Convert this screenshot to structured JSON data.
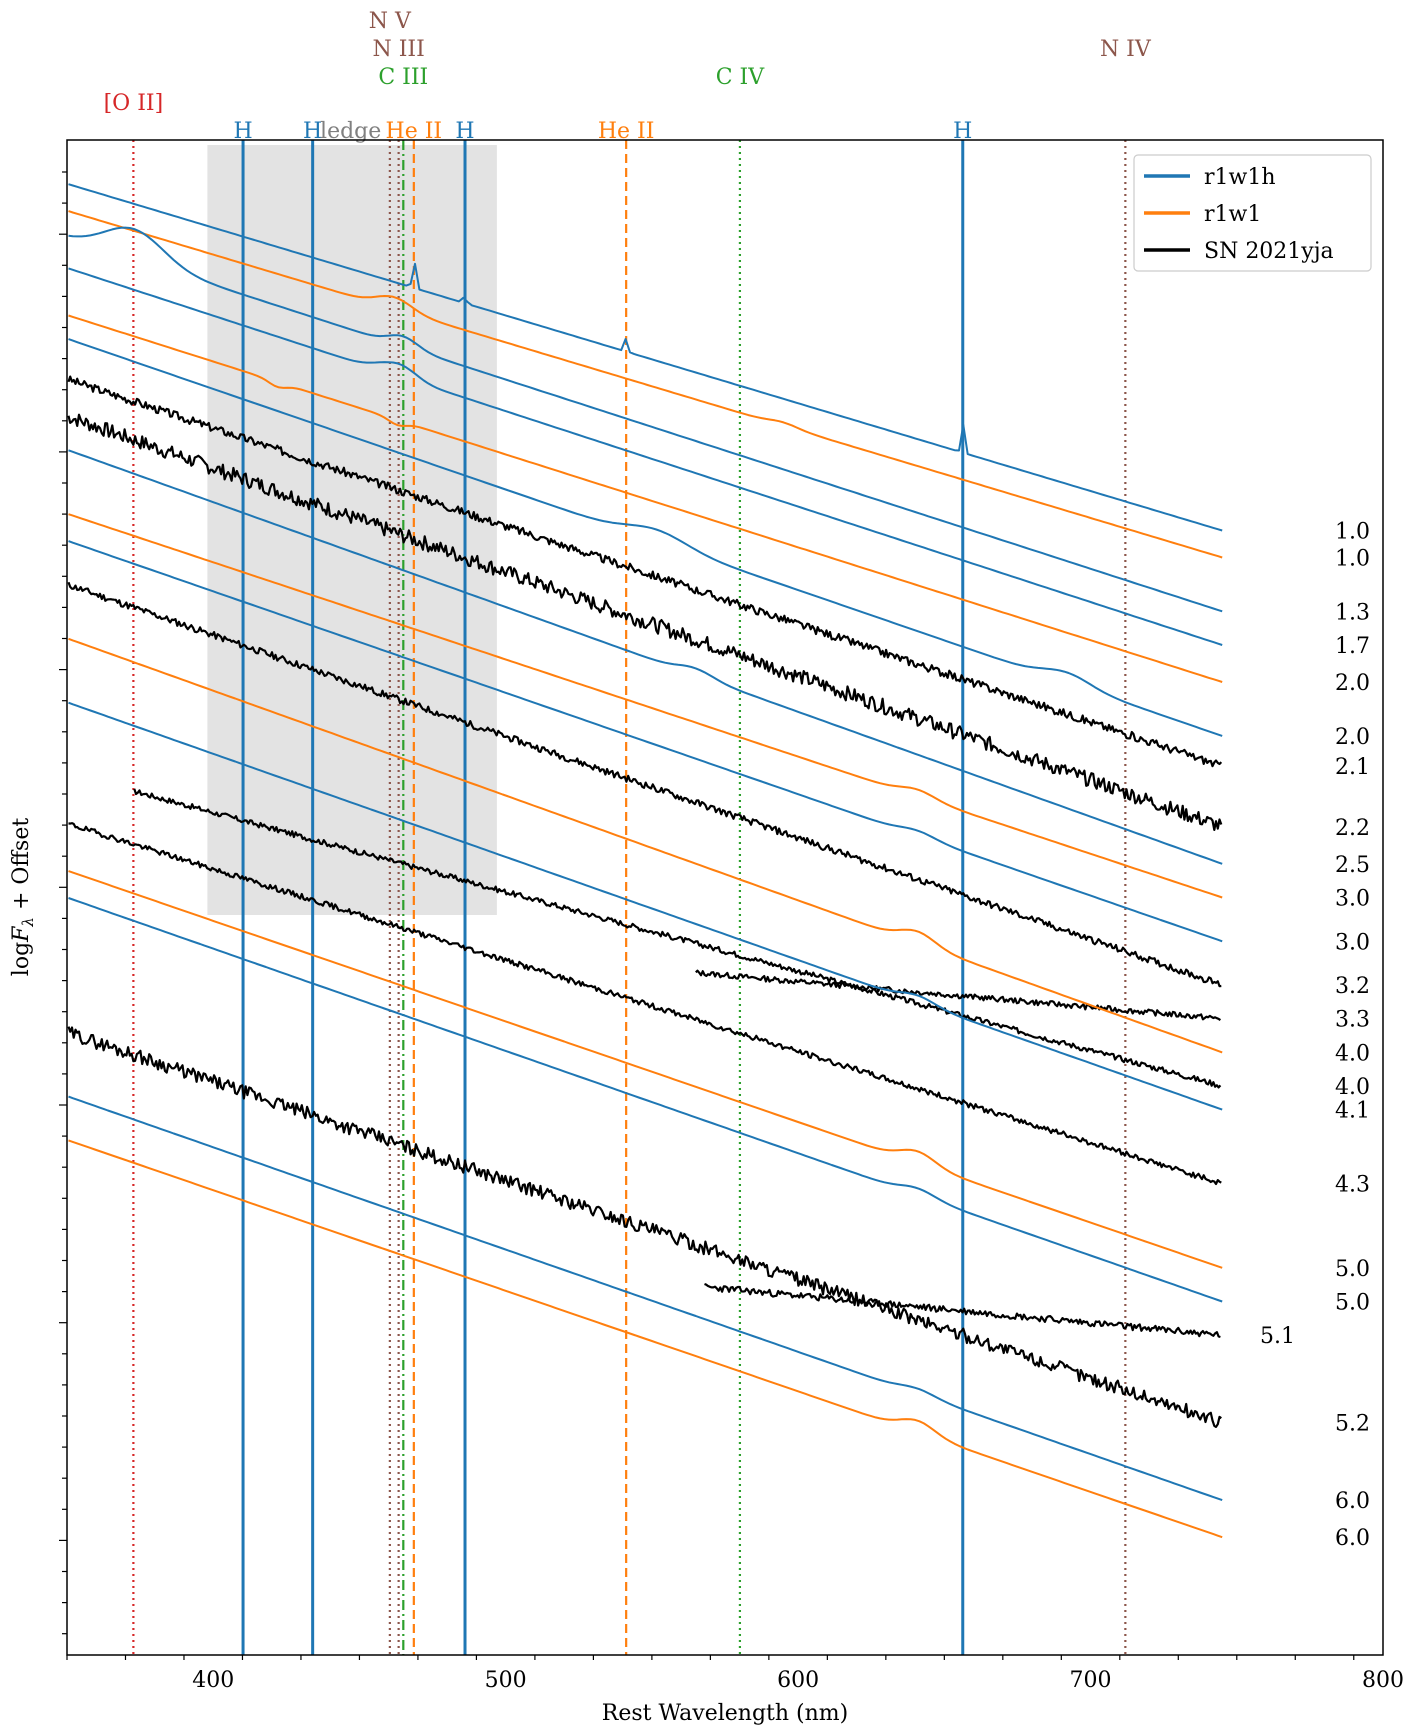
{
  "chart_data": {
    "type": "line",
    "xlabel": "Rest Wavelength (nm)",
    "ylabel": "log$F_\\lambda$ + Offset",
    "xlim": [
      350,
      800
    ],
    "xticks": [
      400,
      500,
      600,
      700,
      800
    ],
    "grid": false,
    "legend_placement": "top-right",
    "legend": [
      {
        "label": "r1w1h",
        "color": "#1f77b4"
      },
      {
        "label": "r1w1",
        "color": "#ff7f0e"
      },
      {
        "label": "SN 2021yja",
        "color": "#000000"
      }
    ],
    "ledge_band": {
      "label": "ledge",
      "x": [
        398,
        497
      ]
    },
    "line_markers": [
      {
        "label": "[O II]",
        "x": 372.7,
        "color": "#d62728",
        "style": "dotted",
        "tier": 0
      },
      {
        "label": "H",
        "x": 410.2,
        "color": "#1f77b4",
        "style": "solid",
        "tier": 1
      },
      {
        "label": "H",
        "x": 434.0,
        "color": "#1f77b4",
        "style": "solid",
        "tier": 1
      },
      {
        "label": "H",
        "x": 486.1,
        "color": "#1f77b4",
        "style": "solid",
        "tier": 1
      },
      {
        "label": "H",
        "x": 656.3,
        "color": "#1f77b4",
        "style": "solid",
        "tier": 1
      },
      {
        "label": "N V",
        "x": 460.4,
        "color": "#8c564b",
        "style": "dotted",
        "tier": 4
      },
      {
        "label": "N III",
        "x": 463.4,
        "color": "#8c564b",
        "style": "dotted",
        "tier": 3
      },
      {
        "label": "C III",
        "x": 465.0,
        "color": "#2ca02c",
        "style": "dashdot",
        "tier": 2
      },
      {
        "label": "He II",
        "x": 468.6,
        "color": "#ff7f0e",
        "style": "dashed",
        "tier": 1
      },
      {
        "label": "He II",
        "x": 541.2,
        "color": "#ff7f0e",
        "style": "dashed",
        "tier": 1
      },
      {
        "label": "C IV",
        "x": 580.1,
        "color": "#2ca02c",
        "style": "dotted",
        "tier": 2
      },
      {
        "label": "N IV",
        "x": 711.9,
        "color": "#8c564b",
        "style": "dotted",
        "tier": 3
      }
    ],
    "series": [
      {
        "model": "r1w1h",
        "color": "#1f77b4",
        "phase_label": "1.0",
        "y0": 12.2,
        "y1": 1.9,
        "features": [
          {
            "x": 468.6,
            "h": 1.0,
            "w": 0.5
          },
          {
            "x": 486.1,
            "h": 0.3,
            "w": 0.5
          },
          {
            "x": 541.2,
            "h": 0.4,
            "w": 0.5
          },
          {
            "x": 656.3,
            "h": 0.9,
            "w": 0.5
          }
        ]
      },
      {
        "model": "r1w1",
        "color": "#ff7f0e",
        "phase_label": "1.0",
        "y0": 11.4,
        "y1": 1.1,
        "features": [
          {
            "x": 462,
            "h": 0.35,
            "w": 6
          },
          {
            "x": 595,
            "h": 0.1,
            "w": 5
          }
        ]
      },
      {
        "model": "r1w1h",
        "color": "#1f77b4",
        "phase_label": "1.3",
        "y0": 10.6,
        "y1": -0.5,
        "features": [
          {
            "x": 373,
            "h": 0.9,
            "w": 10
          },
          {
            "x": 465,
            "h": 0.3,
            "w": 5
          }
        ]
      },
      {
        "model": "r1w1h",
        "color": "#1f77b4",
        "phase_label": "1.7",
        "y0": 9.7,
        "y1": -1.5,
        "features": [
          {
            "x": 465,
            "h": 0.3,
            "w": 5
          },
          {
            "x": 458,
            "h": 0.15,
            "w": 5
          }
        ]
      },
      {
        "model": "r1w1",
        "color": "#ff7f0e",
        "phase_label": "2.0",
        "y0": 8.3,
        "y1": -2.6,
        "features": [
          {
            "x": 422,
            "h": -0.15,
            "w": 3
          },
          {
            "x": 463,
            "h": -0.15,
            "w": 3
          }
        ]
      },
      {
        "model": "r1w1h",
        "color": "#1f77b4",
        "phase_label": "2.0",
        "y0": 7.6,
        "y1": -4.2,
        "features": [
          {
            "x": 552,
            "h": 0.35,
            "w": 10
          },
          {
            "x": 692,
            "h": 0.3,
            "w": 8
          }
        ]
      },
      {
        "model": "SN 2021yja",
        "color": "#000000",
        "phase_label": "2.1",
        "y0": 6.4,
        "y1": -5.1,
        "noise": 0.12,
        "seed": 3
      },
      {
        "model": "SN 2021yja",
        "color": "#000000",
        "phase_label": "2.2",
        "y0": 5.3,
        "y1": -6.9,
        "noise": 0.22,
        "seed": 7
      },
      {
        "model": "r1w1h",
        "color": "#1f77b4",
        "phase_label": "2.5",
        "y0": 4.3,
        "y1": -8.0,
        "features": [
          {
            "x": 565,
            "h": 0.2,
            "w": 6
          }
        ]
      },
      {
        "model": "r1w1",
        "color": "#ff7f0e",
        "phase_label": "3.0",
        "y0": 2.4,
        "y1": -9.0,
        "features": [
          {
            "x": 641,
            "h": 0.2,
            "w": 6
          }
        ]
      },
      {
        "model": "r1w1h",
        "color": "#1f77b4",
        "phase_label": "3.0",
        "y0": 1.6,
        "y1": -10.3,
        "features": [
          {
            "x": 641,
            "h": 0.15,
            "w": 6
          }
        ]
      },
      {
        "model": "SN 2021yja",
        "color": "#000000",
        "phase_label": "3.2",
        "y0": 0.3,
        "y1": -11.6,
        "noise": 0.1,
        "seed": 11
      },
      {
        "model": "SN 2021yja",
        "color": "#000000",
        "phase_label": "3.3",
        "x0": 565,
        "y0": -9.6,
        "y1": -12.6,
        "noise": 0.08,
        "seed": 13
      },
      {
        "model": "r1w1",
        "color": "#ff7f0e",
        "phase_label": "4.0",
        "y0": -1.3,
        "y1": -13.6,
        "features": [
          {
            "x": 641,
            "h": 0.35,
            "w": 6
          }
        ]
      },
      {
        "model": "SN 2021yja",
        "color": "#000000",
        "phase_label": "4.0",
        "x0": 373,
        "y0": -5.3,
        "y1": -14.6,
        "noise": 0.08,
        "seed": 17
      },
      {
        "model": "r1w1h",
        "color": "#1f77b4",
        "phase_label": "4.1",
        "y0": -3.2,
        "y1": -15.3,
        "features": [
          {
            "x": 641,
            "h": 0.2,
            "w": 6
          }
        ]
      },
      {
        "model": "SN 2021yja",
        "color": "#000000",
        "phase_label": "4.3",
        "y0": -6.8,
        "y1": -17.5,
        "noise": 0.08,
        "seed": 19
      },
      {
        "model": "r1w1",
        "color": "#ff7f0e",
        "phase_label": "5.0",
        "y0": -8.2,
        "y1": -20.0,
        "features": [
          {
            "x": 641,
            "h": 0.35,
            "w": 6
          }
        ]
      },
      {
        "model": "r1w1h",
        "color": "#1f77b4",
        "phase_label": "5.0",
        "y0": -9.0,
        "y1": -21.0,
        "features": [
          {
            "x": 641,
            "h": 0.2,
            "w": 6
          }
        ]
      },
      {
        "model": "SN 2021yja",
        "color": "#000000",
        "phase_label": "5.1",
        "x0": 568,
        "y0": -18.8,
        "y1": -22.0,
        "noise": 0.1,
        "seed": 23
      },
      {
        "model": "SN 2021yja",
        "color": "#000000",
        "phase_label": "5.2",
        "y0": -13.0,
        "y1": -24.6,
        "noise": 0.2,
        "seed": 29
      },
      {
        "model": "r1w1h",
        "color": "#1f77b4",
        "phase_label": "6.0",
        "y0": -14.9,
        "y1": -26.9,
        "features": [
          {
            "x": 641,
            "h": 0.15,
            "w": 6
          }
        ]
      },
      {
        "model": "r1w1",
        "color": "#ff7f0e",
        "phase_label": "6.0",
        "y0": -16.2,
        "y1": -28.0,
        "features": [
          {
            "x": 641,
            "h": 0.35,
            "w": 6
          }
        ]
      }
    ]
  }
}
